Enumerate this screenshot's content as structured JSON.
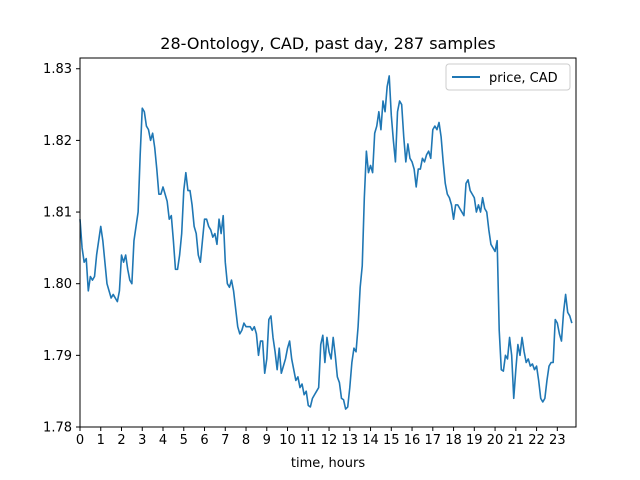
{
  "chart_data": {
    "type": "line",
    "title": "28-Ontology, CAD, past day, 287 samples",
    "xlabel": "time, hours",
    "ylabel": "",
    "xlim": [
      0,
      23.9
    ],
    "ylim": [
      1.78,
      1.8315
    ],
    "x_ticks": [
      0,
      1,
      2,
      3,
      4,
      5,
      6,
      7,
      8,
      9,
      10,
      11,
      12,
      13,
      14,
      15,
      16,
      17,
      18,
      19,
      20,
      21,
      22,
      23
    ],
    "y_ticks": [
      1.78,
      1.79,
      1.8,
      1.81,
      1.82,
      1.83
    ],
    "y_tick_labels": [
      "1.78",
      "1.79",
      "1.80",
      "1.81",
      "1.82",
      "1.83"
    ],
    "legend": {
      "position": "top-right"
    },
    "series": [
      {
        "name": "price, CAD",
        "color": "#1f77b4",
        "points": [
          [
            0.0,
            1.809
          ],
          [
            0.1,
            1.805
          ],
          [
            0.2,
            1.803
          ],
          [
            0.3,
            1.8035
          ],
          [
            0.4,
            1.799
          ],
          [
            0.5,
            1.801
          ],
          [
            0.6,
            1.8005
          ],
          [
            0.7,
            1.801
          ],
          [
            0.8,
            1.804
          ],
          [
            1.0,
            1.808
          ],
          [
            1.1,
            1.806
          ],
          [
            1.2,
            1.803
          ],
          [
            1.3,
            1.8
          ],
          [
            1.5,
            1.798
          ],
          [
            1.6,
            1.7985
          ],
          [
            1.8,
            1.7975
          ],
          [
            1.9,
            1.799
          ],
          [
            2.0,
            1.804
          ],
          [
            2.1,
            1.803
          ],
          [
            2.2,
            1.804
          ],
          [
            2.3,
            1.802
          ],
          [
            2.4,
            1.8005
          ],
          [
            2.5,
            1.8
          ],
          [
            2.6,
            1.806
          ],
          [
            2.7,
            1.808
          ],
          [
            2.8,
            1.81
          ],
          [
            2.9,
            1.818
          ],
          [
            3.0,
            1.8245
          ],
          [
            3.1,
            1.824
          ],
          [
            3.2,
            1.822
          ],
          [
            3.3,
            1.8215
          ],
          [
            3.4,
            1.82
          ],
          [
            3.5,
            1.821
          ],
          [
            3.6,
            1.819
          ],
          [
            3.7,
            1.816
          ],
          [
            3.8,
            1.8125
          ],
          [
            3.9,
            1.8125
          ],
          [
            4.0,
            1.8135
          ],
          [
            4.1,
            1.8125
          ],
          [
            4.2,
            1.8115
          ],
          [
            4.3,
            1.809
          ],
          [
            4.4,
            1.8095
          ],
          [
            4.5,
            1.806
          ],
          [
            4.6,
            1.802
          ],
          [
            4.7,
            1.802
          ],
          [
            4.8,
            1.804
          ],
          [
            4.9,
            1.807
          ],
          [
            5.0,
            1.813
          ],
          [
            5.1,
            1.8155
          ],
          [
            5.2,
            1.813
          ],
          [
            5.3,
            1.813
          ],
          [
            5.4,
            1.811
          ],
          [
            5.5,
            1.808
          ],
          [
            5.6,
            1.807
          ],
          [
            5.7,
            1.804
          ],
          [
            5.8,
            1.803
          ],
          [
            5.9,
            1.806
          ],
          [
            6.0,
            1.809
          ],
          [
            6.1,
            1.809
          ],
          [
            6.2,
            1.808
          ],
          [
            6.3,
            1.8075
          ],
          [
            6.4,
            1.8065
          ],
          [
            6.5,
            1.807
          ],
          [
            6.6,
            1.8055
          ],
          [
            6.7,
            1.809
          ],
          [
            6.8,
            1.807
          ],
          [
            6.9,
            1.8095
          ],
          [
            7.0,
            1.803
          ],
          [
            7.1,
            1.8
          ],
          [
            7.2,
            1.7995
          ],
          [
            7.3,
            1.8005
          ],
          [
            7.4,
            1.799
          ],
          [
            7.5,
            1.7965
          ],
          [
            7.6,
            1.794
          ],
          [
            7.7,
            1.793
          ],
          [
            7.8,
            1.7935
          ],
          [
            7.9,
            1.7945
          ],
          [
            8.0,
            1.794
          ],
          [
            8.2,
            1.794
          ],
          [
            8.3,
            1.7935
          ],
          [
            8.4,
            1.794
          ],
          [
            8.5,
            1.793
          ],
          [
            8.6,
            1.79
          ],
          [
            8.7,
            1.792
          ],
          [
            8.8,
            1.792
          ],
          [
            8.9,
            1.7875
          ],
          [
            9.0,
            1.7895
          ],
          [
            9.1,
            1.795
          ],
          [
            9.2,
            1.7955
          ],
          [
            9.3,
            1.7925
          ],
          [
            9.4,
            1.7905
          ],
          [
            9.5,
            1.788
          ],
          [
            9.6,
            1.791
          ],
          [
            9.7,
            1.7875
          ],
          [
            9.8,
            1.7885
          ],
          [
            9.9,
            1.7895
          ],
          [
            10.0,
            1.791
          ],
          [
            10.1,
            1.792
          ],
          [
            10.2,
            1.7895
          ],
          [
            10.3,
            1.788
          ],
          [
            10.4,
            1.7865
          ],
          [
            10.5,
            1.787
          ],
          [
            10.6,
            1.7855
          ],
          [
            10.7,
            1.786
          ],
          [
            10.8,
            1.7845
          ],
          [
            10.9,
            1.785
          ],
          [
            11.0,
            1.783
          ],
          [
            11.1,
            1.7828
          ],
          [
            11.2,
            1.784
          ],
          [
            11.3,
            1.7845
          ],
          [
            11.4,
            1.785
          ],
          [
            11.5,
            1.7855
          ],
          [
            11.6,
            1.7915
          ],
          [
            11.7,
            1.7928
          ],
          [
            11.8,
            1.789
          ],
          [
            11.9,
            1.7925
          ],
          [
            12.0,
            1.7905
          ],
          [
            12.1,
            1.7895
          ],
          [
            12.2,
            1.7925
          ],
          [
            12.3,
            1.79
          ],
          [
            12.4,
            1.787
          ],
          [
            12.5,
            1.7862
          ],
          [
            12.6,
            1.784
          ],
          [
            12.7,
            1.7838
          ],
          [
            12.8,
            1.7825
          ],
          [
            12.9,
            1.7828
          ],
          [
            13.0,
            1.7855
          ],
          [
            13.1,
            1.789
          ],
          [
            13.2,
            1.791
          ],
          [
            13.3,
            1.7905
          ],
          [
            13.4,
            1.794
          ],
          [
            13.5,
            1.7995
          ],
          [
            13.6,
            1.8025
          ],
          [
            13.7,
            1.812
          ],
          [
            13.8,
            1.8185
          ],
          [
            13.9,
            1.8155
          ],
          [
            14.0,
            1.8165
          ],
          [
            14.1,
            1.8155
          ],
          [
            14.2,
            1.821
          ],
          [
            14.3,
            1.822
          ],
          [
            14.4,
            1.824
          ],
          [
            14.5,
            1.8215
          ],
          [
            14.6,
            1.8255
          ],
          [
            14.7,
            1.824
          ],
          [
            14.8,
            1.8275
          ],
          [
            14.9,
            1.829
          ],
          [
            15.0,
            1.8235
          ],
          [
            15.1,
            1.82
          ],
          [
            15.2,
            1.817
          ],
          [
            15.3,
            1.824
          ],
          [
            15.4,
            1.8255
          ],
          [
            15.5,
            1.825
          ],
          [
            15.6,
            1.8205
          ],
          [
            15.7,
            1.817
          ],
          [
            15.8,
            1.8195
          ],
          [
            15.9,
            1.8175
          ],
          [
            16.0,
            1.817
          ],
          [
            16.1,
            1.816
          ],
          [
            16.2,
            1.8135
          ],
          [
            16.3,
            1.816
          ],
          [
            16.4,
            1.816
          ],
          [
            16.5,
            1.8175
          ],
          [
            16.6,
            1.817
          ],
          [
            16.7,
            1.818
          ],
          [
            16.8,
            1.8185
          ],
          [
            16.9,
            1.8175
          ],
          [
            17.0,
            1.8215
          ],
          [
            17.1,
            1.822
          ],
          [
            17.2,
            1.8215
          ],
          [
            17.3,
            1.8225
          ],
          [
            17.4,
            1.8205
          ],
          [
            17.5,
            1.817
          ],
          [
            17.6,
            1.814
          ],
          [
            17.7,
            1.8125
          ],
          [
            17.8,
            1.812
          ],
          [
            17.9,
            1.811
          ],
          [
            18.0,
            1.809
          ],
          [
            18.1,
            1.811
          ],
          [
            18.2,
            1.811
          ],
          [
            18.3,
            1.8105
          ],
          [
            18.4,
            1.81
          ],
          [
            18.5,
            1.8095
          ],
          [
            18.6,
            1.814
          ],
          [
            18.7,
            1.8145
          ],
          [
            18.8,
            1.813
          ],
          [
            18.9,
            1.8125
          ],
          [
            19.0,
            1.812
          ],
          [
            19.1,
            1.81
          ],
          [
            19.2,
            1.811
          ],
          [
            19.3,
            1.81
          ],
          [
            19.4,
            1.812
          ],
          [
            19.5,
            1.8105
          ],
          [
            19.6,
            1.81
          ],
          [
            19.7,
            1.8075
          ],
          [
            19.8,
            1.8055
          ],
          [
            19.9,
            1.805
          ],
          [
            20.0,
            1.8045
          ],
          [
            20.1,
            1.806
          ],
          [
            20.2,
            1.7935
          ],
          [
            20.3,
            1.788
          ],
          [
            20.4,
            1.7878
          ],
          [
            20.5,
            1.79
          ],
          [
            20.6,
            1.7895
          ],
          [
            20.7,
            1.7925
          ],
          [
            20.8,
            1.79
          ],
          [
            20.9,
            1.784
          ],
          [
            21.0,
            1.788
          ],
          [
            21.1,
            1.7915
          ],
          [
            21.2,
            1.79
          ],
          [
            21.3,
            1.7925
          ],
          [
            21.4,
            1.7905
          ],
          [
            21.5,
            1.789
          ],
          [
            21.6,
            1.7895
          ],
          [
            21.7,
            1.7885
          ],
          [
            21.8,
            1.7888
          ],
          [
            21.9,
            1.788
          ],
          [
            22.0,
            1.7885
          ],
          [
            22.1,
            1.7865
          ],
          [
            22.2,
            1.784
          ],
          [
            22.3,
            1.7835
          ],
          [
            22.4,
            1.784
          ],
          [
            22.5,
            1.7865
          ],
          [
            22.6,
            1.7885
          ],
          [
            22.7,
            1.789
          ],
          [
            22.8,
            1.789
          ],
          [
            22.9,
            1.795
          ],
          [
            23.0,
            1.7945
          ],
          [
            23.1,
            1.793
          ],
          [
            23.2,
            1.792
          ],
          [
            23.3,
            1.796
          ],
          [
            23.4,
            1.7985
          ],
          [
            23.5,
            1.796
          ],
          [
            23.6,
            1.7955
          ],
          [
            23.7,
            1.7945
          ]
        ]
      }
    ]
  }
}
